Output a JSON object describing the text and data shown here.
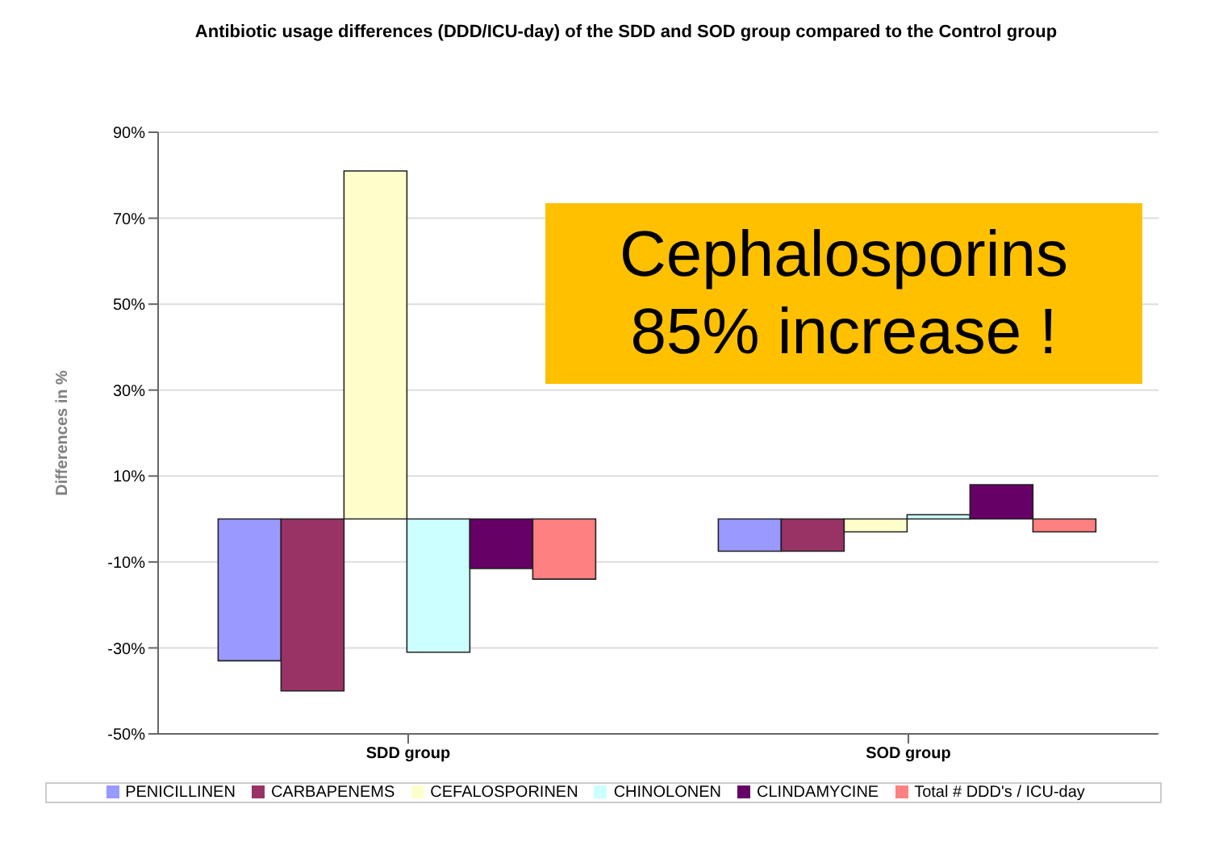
{
  "chart_data": {
    "type": "bar",
    "title": "Antibiotic usage differences (DDD/ICU-day) of the SDD and SOD group compared to the Control group",
    "ylabel": "Differences in %",
    "categories": [
      "SDD group",
      "SOD group"
    ],
    "series": [
      {
        "name": "PENICILLINEN",
        "color": "#9999ff",
        "values": [
          -33,
          -7.5
        ]
      },
      {
        "name": "CARBAPENEMS",
        "color": "#993366",
        "values": [
          -40,
          -7.5
        ]
      },
      {
        "name": "CEFALOSPORINEN",
        "color": "#ffffcc",
        "values": [
          81,
          -3
        ]
      },
      {
        "name": "CHINOLONEN",
        "color": "#ccffff",
        "values": [
          -31,
          1
        ]
      },
      {
        "name": "CLINDAMYCINE",
        "color": "#660066",
        "values": [
          -11.5,
          8
        ]
      },
      {
        "name": "Total # DDD's / ICU-day",
        "color": "#ff8080",
        "values": [
          -14,
          -3
        ]
      }
    ],
    "ylim": [
      -50,
      90
    ],
    "yticks": [
      {
        "value": -50,
        "label": "-50%"
      },
      {
        "value": -30,
        "label": "-30%"
      },
      {
        "value": -10,
        "label": "-10%"
      },
      {
        "value": 10,
        "label": "10%"
      },
      {
        "value": 30,
        "label": "30%"
      },
      {
        "value": 50,
        "label": "50%"
      },
      {
        "value": 70,
        "label": "70%"
      },
      {
        "value": 90,
        "label": "90%"
      }
    ],
    "grid": "y",
    "legend": "bottom",
    "annotations": [
      "Cephalosporins\n85% increase !"
    ]
  }
}
